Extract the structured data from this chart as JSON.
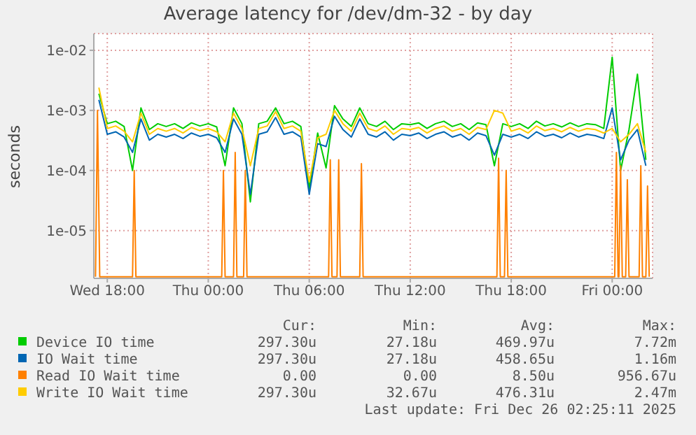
{
  "chart_data": {
    "type": "line",
    "title": "Average latency for /dev/dm-32 - by day",
    "ylabel": "seconds",
    "log": "y",
    "grid": true,
    "legend": "bottom",
    "marker": "none",
    "line_style": "solid",
    "xlim": [
      "2025-12-24T17:12",
      "2025-12-26T02:24"
    ],
    "xticks": [
      {
        "value": "2025-12-24T18:00",
        "label": "Wed 18:00"
      },
      {
        "value": "2025-12-25T00:00",
        "label": "Thu 00:00"
      },
      {
        "value": "2025-12-25T06:00",
        "label": "Thu 06:00"
      },
      {
        "value": "2025-12-25T12:00",
        "label": "Thu 12:00"
      },
      {
        "value": "2025-12-25T18:00",
        "label": "Thu 18:00"
      },
      {
        "value": "2025-12-26T00:00",
        "label": "Fri 00:00"
      }
    ],
    "ylim": [
      1.6e-06,
      0.019
    ],
    "yticks": [
      {
        "value": 1e-05,
        "label": "1e-05"
      },
      {
        "value": 0.0001,
        "label": "1e-04"
      },
      {
        "value": 0.001,
        "label": "1e-03"
      },
      {
        "value": 0.01,
        "label": "1e-02"
      }
    ],
    "x": [
      "2025-12-24T17:30",
      "2025-12-24T18:00",
      "2025-12-24T18:30",
      "2025-12-24T19:00",
      "2025-12-24T19:30",
      "2025-12-24T20:00",
      "2025-12-24T20:30",
      "2025-12-24T21:00",
      "2025-12-24T21:30",
      "2025-12-24T22:00",
      "2025-12-24T22:30",
      "2025-12-24T23:00",
      "2025-12-24T23:30",
      "2025-12-25T00:00",
      "2025-12-25T00:30",
      "2025-12-25T01:00",
      "2025-12-25T01:30",
      "2025-12-25T02:00",
      "2025-12-25T02:30",
      "2025-12-25T03:00",
      "2025-12-25T03:30",
      "2025-12-25T04:00",
      "2025-12-25T04:30",
      "2025-12-25T05:00",
      "2025-12-25T05:30",
      "2025-12-25T06:00",
      "2025-12-25T06:30",
      "2025-12-25T07:00",
      "2025-12-25T07:30",
      "2025-12-25T08:00",
      "2025-12-25T08:30",
      "2025-12-25T09:00",
      "2025-12-25T09:30",
      "2025-12-25T10:00",
      "2025-12-25T10:30",
      "2025-12-25T11:00",
      "2025-12-25T11:30",
      "2025-12-25T12:00",
      "2025-12-25T12:30",
      "2025-12-25T13:00",
      "2025-12-25T13:30",
      "2025-12-25T14:00",
      "2025-12-25T14:30",
      "2025-12-25T15:00",
      "2025-12-25T15:30",
      "2025-12-25T16:00",
      "2025-12-25T16:30",
      "2025-12-25T17:00",
      "2025-12-25T17:30",
      "2025-12-25T18:00",
      "2025-12-25T18:30",
      "2025-12-25T19:00",
      "2025-12-25T19:30",
      "2025-12-25T20:00",
      "2025-12-25T20:30",
      "2025-12-25T21:00",
      "2025-12-25T21:30",
      "2025-12-25T22:00",
      "2025-12-25T22:30",
      "2025-12-25T23:00",
      "2025-12-25T23:30",
      "2025-12-26T00:00",
      "2025-12-26T00:30",
      "2025-12-26T01:00",
      "2025-12-26T01:30",
      "2025-12-26T02:00"
    ],
    "series": [
      {
        "name": "Device IO time",
        "color": "#00cc00",
        "values": [
          0.0019,
          0.0006,
          0.00066,
          0.00054,
          0.0001,
          0.0011,
          0.00048,
          0.0006,
          0.00054,
          0.0006,
          0.0005,
          0.00062,
          0.00055,
          0.0006,
          0.00053,
          0.00012,
          0.0011,
          0.0006,
          3e-05,
          0.0006,
          0.00066,
          0.0011,
          0.0006,
          0.00066,
          0.00054,
          5e-05,
          0.00042,
          0.00011,
          0.0012,
          0.00072,
          0.00054,
          0.0011,
          0.0006,
          0.00054,
          0.00066,
          0.00048,
          0.0006,
          0.00058,
          0.00062,
          0.0005,
          0.0006,
          0.00066,
          0.00054,
          0.0006,
          0.00048,
          0.00062,
          0.00058,
          0.00012,
          0.0006,
          0.00054,
          0.0006,
          0.0005,
          0.00066,
          0.00055,
          0.0006,
          0.00053,
          0.00062,
          0.00054,
          0.0006,
          0.00058,
          0.0005,
          0.0077,
          0.0001,
          0.00048,
          0.004,
          0.00015
        ]
      },
      {
        "name": "IO Wait time",
        "color": "#0066b3",
        "values": [
          0.0015,
          0.0004,
          0.00044,
          0.00036,
          0.0002,
          0.00072,
          0.00032,
          0.0004,
          0.00036,
          0.0004,
          0.00034,
          0.00042,
          0.00037,
          0.0004,
          0.00035,
          0.0002,
          0.00072,
          0.0004,
          4e-05,
          0.0004,
          0.00044,
          0.00076,
          0.0004,
          0.00044,
          0.00036,
          4e-05,
          0.00028,
          0.00025,
          0.0008,
          0.00048,
          0.00036,
          0.00072,
          0.0004,
          0.00036,
          0.00044,
          0.00032,
          0.0004,
          0.00038,
          0.00042,
          0.00034,
          0.0004,
          0.00044,
          0.00036,
          0.0004,
          0.00032,
          0.00042,
          0.00038,
          0.00018,
          0.0004,
          0.00036,
          0.0004,
          0.00034,
          0.00044,
          0.00037,
          0.0004,
          0.00035,
          0.00042,
          0.00036,
          0.0004,
          0.00038,
          0.00034,
          0.0011,
          0.00015,
          0.00032,
          0.00048,
          0.00012
        ]
      },
      {
        "name": "Read IO Wait time",
        "color": "#ff8000",
        "x": [
          "2025-12-24T17:18",
          "2025-12-24T17:25",
          "2025-12-24T17:33",
          "2025-12-24T19:30",
          "2025-12-24T19:36",
          "2025-12-24T19:42",
          "2025-12-25T00:48",
          "2025-12-25T00:54",
          "2025-12-25T01:00",
          "2025-12-25T01:30",
          "2025-12-25T01:36",
          "2025-12-25T01:42",
          "2025-12-25T02:06",
          "2025-12-25T02:12",
          "2025-12-25T02:18",
          "2025-12-25T07:09",
          "2025-12-25T07:15",
          "2025-12-25T07:21",
          "2025-12-25T07:39",
          "2025-12-25T07:45",
          "2025-12-25T07:51",
          "2025-12-25T09:00",
          "2025-12-25T09:06",
          "2025-12-25T09:12",
          "2025-12-25T17:09",
          "2025-12-25T17:15",
          "2025-12-25T17:21",
          "2025-12-25T17:36",
          "2025-12-25T17:42",
          "2025-12-25T17:48",
          "2025-12-26T00:09",
          "2025-12-26T00:15",
          "2025-12-26T00:21",
          "2025-12-26T00:24",
          "2025-12-26T00:30",
          "2025-12-26T00:36",
          "2025-12-26T00:48",
          "2025-12-26T00:54",
          "2025-12-26T01:00",
          "2025-12-26T01:36",
          "2025-12-26T01:42",
          "2025-12-26T01:48",
          "2025-12-26T02:00",
          "2025-12-26T02:06",
          "2025-12-26T02:12"
        ],
        "values": [
          1.7e-06,
          0.001,
          1.7e-06,
          1.7e-06,
          0.0001,
          1.7e-06,
          1.7e-06,
          0.0001,
          1.7e-06,
          1.7e-06,
          0.0002,
          1.7e-06,
          1.7e-06,
          0.0001,
          1.7e-06,
          1.7e-06,
          0.00015,
          1.7e-06,
          1.7e-06,
          0.00015,
          1.7e-06,
          1.7e-06,
          0.00013,
          1.7e-06,
          1.7e-06,
          0.00016,
          1.7e-06,
          1.7e-06,
          0.0001,
          1.7e-06,
          1.7e-06,
          0.0002,
          1.7e-06,
          1.7e-06,
          0.00012,
          1.7e-06,
          1.7e-06,
          7e-05,
          1.7e-06,
          1.7e-06,
          0.00012,
          1.7e-06,
          1.7e-06,
          5.5e-05,
          1.7e-06
        ]
      },
      {
        "name": "Write IO Wait time",
        "color": "#ffcc00",
        "values": [
          0.0024,
          0.0005,
          0.00055,
          0.00045,
          0.0003,
          0.0009,
          0.0004,
          0.0005,
          0.00045,
          0.0005,
          0.00042,
          0.00052,
          0.00046,
          0.0005,
          0.00044,
          0.0003,
          0.0009,
          0.0005,
          0.00012,
          0.0005,
          0.00055,
          0.00095,
          0.0005,
          0.00055,
          0.00045,
          6.5e-05,
          0.00035,
          0.0004,
          0.001,
          0.0006,
          0.00045,
          0.0009,
          0.0005,
          0.00045,
          0.00055,
          0.0004,
          0.0005,
          0.00048,
          0.00052,
          0.00042,
          0.0005,
          0.00055,
          0.00045,
          0.0005,
          0.0004,
          0.00052,
          0.00048,
          0.001,
          0.0009,
          0.00045,
          0.0005,
          0.00042,
          0.00055,
          0.00046,
          0.0005,
          0.00044,
          0.00052,
          0.00045,
          0.0005,
          0.00048,
          0.00042,
          0.0005,
          0.0003,
          0.0004,
          0.0006,
          0.0002
        ]
      }
    ],
    "annotations": [
      "Cur:",
      "Min:",
      "Avg:",
      "Max:",
      "297.30u",
      "27.18u",
      "469.97u",
      "7.72m",
      "297.30u",
      "27.18u",
      "458.65u",
      "1.16m",
      "0.00",
      "0.00",
      "8.50u",
      "956.67u",
      "297.30u",
      "32.67u",
      "476.31u",
      "2.47m",
      "Last update: Fri Dec 26 02:25:11 2025"
    ]
  }
}
